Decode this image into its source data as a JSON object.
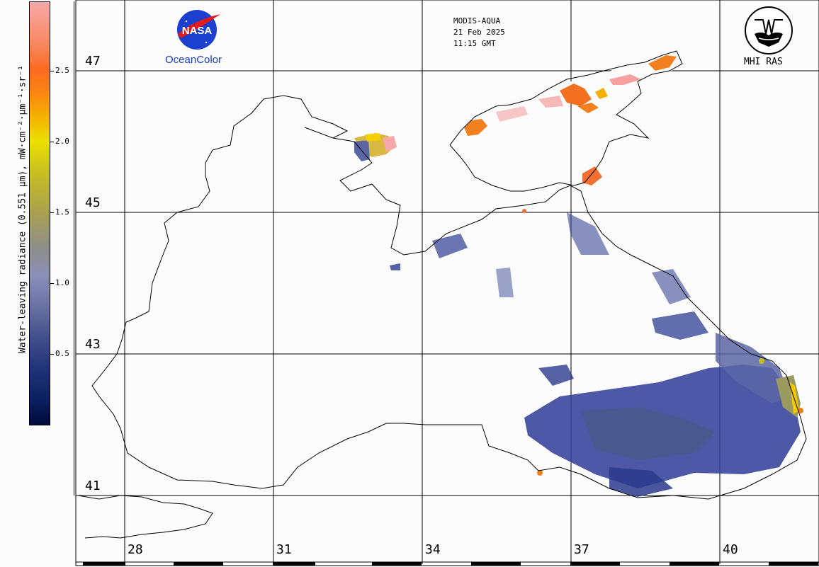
{
  "header": {
    "sensor": "MODIS-AQUA",
    "date": "21 Feb 2025",
    "time": "11:15 GMT"
  },
  "logos": {
    "nasa_label": "NASA",
    "oceancolor_label": "OceanColor",
    "mhi_label": "MHI RAS"
  },
  "colorbar": {
    "title": "Water-leaving radiance (0.551 µm), mW·cm⁻²·µm⁻¹·sr⁻¹",
    "ticks": [
      "2.5",
      "2.0",
      "1.5",
      "1.0",
      "0.5"
    ],
    "colors": [
      "#000a3c",
      "#24357c",
      "#6f77a8",
      "#8e8e8a",
      "#c8c020",
      "#ece000",
      "#fb8a10",
      "#f8a8a8"
    ]
  },
  "latitudes": [
    "47",
    "45",
    "43",
    "41"
  ],
  "longitudes": [
    "28",
    "31",
    "34",
    "37",
    "40"
  ]
}
